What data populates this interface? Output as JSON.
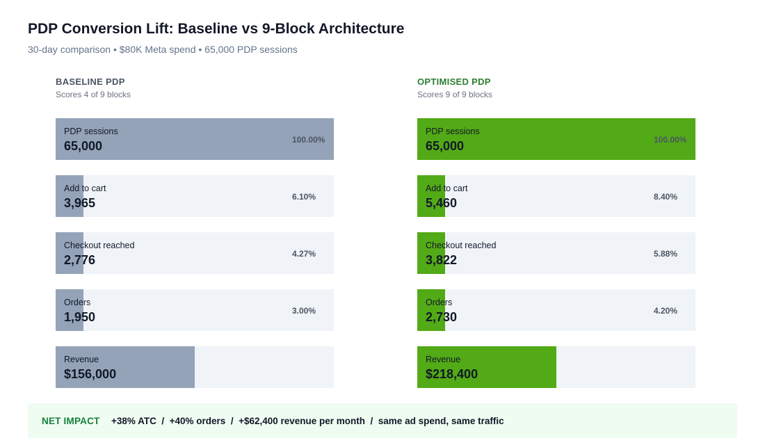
{
  "title": "PDP Conversion Lift: Baseline vs 9-Block Architecture",
  "subtitle": "30-day comparison • $80K Meta spend • 65,000 PDP sessions",
  "net_impact": {
    "label": "NET IMPACT",
    "text": "+38% ATC  /  +40% orders  /  +$62,400 revenue per month  /  same ad spend, same traffic"
  },
  "colors": {
    "baseline": "#94a3b8",
    "optimised": "#52aa16",
    "track": "#f0f4f8",
    "net_bg": "#effcf1"
  },
  "chart_data": [
    {
      "type": "bar",
      "title": "BASELINE PDP",
      "subtitle": "Scores 4 of 9 blocks",
      "stages": [
        {
          "label": "PDP sessions",
          "value": 65000,
          "display": "65,000",
          "pct": "100.00%",
          "fill": 1.0
        },
        {
          "label": "Add to cart",
          "value": 3965,
          "display": "3,965",
          "pct": "6.10%",
          "fill": 0.1
        },
        {
          "label": "Checkout reached",
          "value": 2776,
          "display": "2,776",
          "pct": "4.27%",
          "fill": 0.1
        },
        {
          "label": "Orders",
          "value": 1950,
          "display": "1,950",
          "pct": "3.00%",
          "fill": 0.1
        },
        {
          "label": "Revenue",
          "value": 156000,
          "display": "$156,000",
          "pct": "",
          "fill": 0.5
        }
      ]
    },
    {
      "type": "bar",
      "title": "OPTIMISED PDP",
      "subtitle": "Scores 9 of 9 blocks",
      "stages": [
        {
          "label": "PDP sessions",
          "value": 65000,
          "display": "65,000",
          "pct": "100.00%",
          "fill": 1.0
        },
        {
          "label": "Add to cart",
          "value": 5460,
          "display": "5,460",
          "pct": "8.40%",
          "fill": 0.1
        },
        {
          "label": "Checkout reached",
          "value": 3822,
          "display": "3,822",
          "pct": "5.88%",
          "fill": 0.1
        },
        {
          "label": "Orders",
          "value": 2730,
          "display": "2,730",
          "pct": "4.20%",
          "fill": 0.1
        },
        {
          "label": "Revenue",
          "value": 218400,
          "display": "$218,400",
          "pct": "",
          "fill": 0.5
        }
      ]
    }
  ]
}
